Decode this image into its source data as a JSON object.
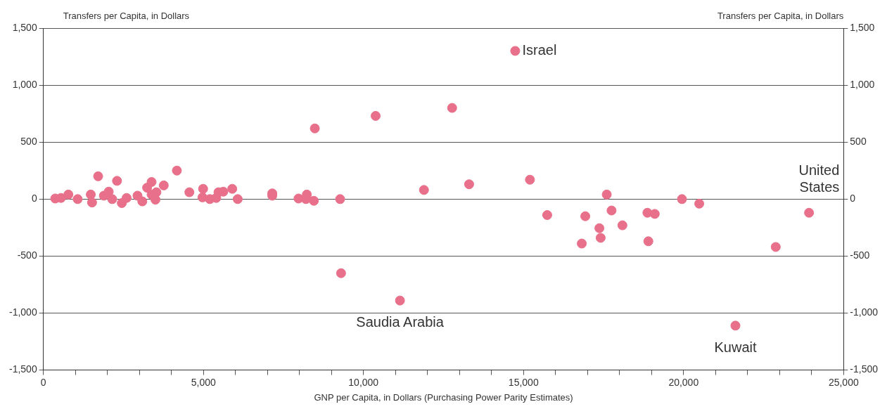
{
  "chart_data": {
    "type": "scatter",
    "xlabel": "GNP per Capita, in Dollars (Purchasing Power Parity Estimates)",
    "ylabel": "Transfers per Capita, in Dollars",
    "y2label": "Transfers per Capita, in Dollars",
    "marker": "circle",
    "grid": "y",
    "legend": false,
    "xlim": [
      0,
      25000
    ],
    "xticks": [
      0,
      {
        "value": 1000,
        "label": null
      },
      {
        "value": 2000,
        "label": null
      },
      {
        "value": 3000,
        "label": null
      },
      {
        "value": 4000,
        "label": null
      },
      {
        "value": 5000,
        "label": "5,000"
      },
      {
        "value": 6000,
        "label": null
      },
      {
        "value": 7000,
        "label": null
      },
      {
        "value": 8000,
        "label": null
      },
      {
        "value": 9000,
        "label": null
      },
      {
        "value": 10000,
        "label": "10,000"
      },
      {
        "value": 11000,
        "label": null
      },
      {
        "value": 12000,
        "label": null
      },
      {
        "value": 13000,
        "label": null
      },
      {
        "value": 14000,
        "label": null
      },
      {
        "value": 15000,
        "label": "15,000"
      },
      {
        "value": 16000,
        "label": null
      },
      {
        "value": 17000,
        "label": null
      },
      {
        "value": 18000,
        "label": null
      },
      {
        "value": 19000,
        "label": null
      },
      {
        "value": 20000,
        "label": "20,000"
      },
      {
        "value": 21000,
        "label": null
      },
      {
        "value": 22000,
        "label": null
      },
      {
        "value": 23000,
        "label": null
      },
      {
        "value": 24000,
        "label": null
      },
      {
        "value": 25000,
        "label": "25,000"
      }
    ],
    "ylim": [
      -1500,
      1500
    ],
    "yticks": [
      {
        "value": -1500,
        "label": "-1,500"
      },
      {
        "value": -1000,
        "label": "-1,000"
      },
      -500,
      0,
      500,
      {
        "value": 1000,
        "label": "1,000"
      },
      {
        "value": 1500,
        "label": "1,500"
      }
    ],
    "y2lim": [
      -1500,
      1500
    ],
    "y2ticks": [
      {
        "value": -1500,
        "label": "-1,500"
      },
      {
        "value": -1000,
        "label": "-1,000"
      },
      -500,
      0,
      500,
      {
        "value": 1000,
        "label": "1,000"
      },
      {
        "value": 1500,
        "label": "1,500"
      }
    ],
    "series": [
      {
        "color": "#e8708a",
        "x": [
          370,
          550,
          780,
          1070,
          1480,
          1520,
          1710,
          1890,
          2040,
          2150,
          2300,
          2450,
          2600,
          2940,
          3090,
          3240,
          3380,
          3380,
          3500,
          3530,
          3760,
          4170,
          4560,
          4970,
          4990,
          5200,
          5400,
          5470,
          5620,
          5900,
          6070,
          7150,
          7150,
          7970,
          8230,
          8200,
          8450,
          8480,
          9270,
          9300,
          10380,
          11140,
          11890,
          12770,
          13300,
          14740,
          15200,
          15740,
          16820,
          16930,
          17370,
          17410,
          17600,
          17750,
          18090,
          18870,
          18900,
          19100,
          19950,
          20490,
          21620,
          22880,
          23920
        ],
        "values": [
          5,
          10,
          40,
          0,
          40,
          -30,
          200,
          30,
          65,
          0,
          160,
          -35,
          10,
          30,
          -20,
          100,
          40,
          150,
          -5,
          60,
          120,
          250,
          60,
          15,
          90,
          0,
          10,
          60,
          65,
          90,
          0,
          30,
          50,
          5,
          40,
          0,
          -15,
          620,
          0,
          -650,
          730,
          -890,
          80,
          800,
          130,
          1300,
          170,
          -140,
          -390,
          -150,
          -255,
          -340,
          40,
          -100,
          -230,
          -120,
          -370,
          -130,
          0,
          -40,
          -1110,
          -420,
          -120
        ]
      }
    ],
    "annotations": [
      {
        "text": "Israel",
        "x": 14740,
        "y": 1300
      },
      {
        "text": "Saudia Arabia",
        "x": 11140,
        "y": -890
      },
      {
        "text": "Kuwait",
        "x": 21620,
        "y": -1110
      },
      {
        "text": "United States",
        "x": 23920,
        "y": -120
      }
    ]
  }
}
